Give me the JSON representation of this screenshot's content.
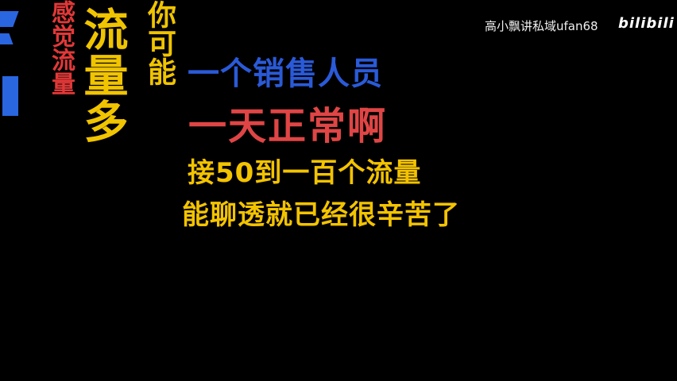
{
  "captions": {
    "side_small": "感觉流量",
    "side_big": "流量多",
    "side_mid": "你可能",
    "line1": "一个销售人员",
    "line2": "一天正常啊",
    "line3": "接50到一百个流量",
    "line4": "能聊透就已经很辛苦了"
  },
  "watermark": {
    "text": "高小飘讲私域ufan68",
    "logo": "bilibili"
  },
  "colors": {
    "background": "#000000",
    "blue": "#2a5ad8",
    "red": "#e04545",
    "yellow": "#f3c300"
  }
}
